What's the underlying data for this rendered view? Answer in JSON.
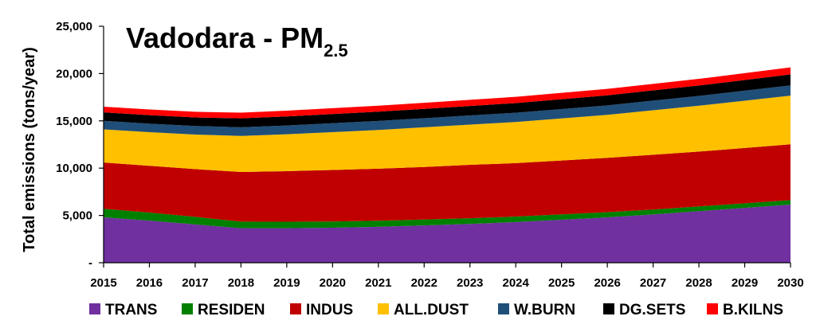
{
  "chart_data": {
    "type": "area",
    "stacked": true,
    "title_main": "Vadodara - PM",
    "title_sub": "2.5",
    "ylabel": "Total emissions (tons/year)",
    "xlabel": "",
    "x": [
      2015,
      2016,
      2017,
      2018,
      2019,
      2020,
      2021,
      2022,
      2023,
      2024,
      2025,
      2026,
      2027,
      2028,
      2029,
      2030
    ],
    "ylim": [
      0,
      25000
    ],
    "y_ticks": [
      {
        "value": 0,
        "label": "-"
      },
      {
        "value": 5000,
        "label": "5,000"
      },
      {
        "value": 10000,
        "label": "10,000"
      },
      {
        "value": 15000,
        "label": "15,000"
      },
      {
        "value": 20000,
        "label": "20,000"
      },
      {
        "value": 25000,
        "label": "25,000"
      }
    ],
    "grid": false,
    "legend_position": "bottom",
    "series": [
      {
        "name": "TRANS",
        "color": "#7030A0",
        "values": [
          4800,
          4450,
          4050,
          3650,
          3650,
          3700,
          3800,
          3950,
          4100,
          4300,
          4550,
          4800,
          5100,
          5450,
          5800,
          6150
        ]
      },
      {
        "name": "RESIDEN",
        "color": "#008000",
        "values": [
          900,
          850,
          800,
          700,
          680,
          660,
          640,
          620,
          600,
          580,
          560,
          540,
          520,
          500,
          480,
          470
        ]
      },
      {
        "name": "INDUS",
        "color": "#C00000",
        "values": [
          4900,
          4950,
          5050,
          5250,
          5350,
          5450,
          5500,
          5550,
          5650,
          5650,
          5700,
          5750,
          5800,
          5800,
          5850,
          5900
        ]
      },
      {
        "name": "ALL.DUST",
        "color": "#FFC000",
        "values": [
          3500,
          3550,
          3650,
          3800,
          3900,
          4000,
          4100,
          4200,
          4250,
          4350,
          4450,
          4550,
          4700,
          4850,
          5000,
          5150
        ]
      },
      {
        "name": "W.BURN",
        "color": "#1F4E79",
        "values": [
          900,
          900,
          910,
          920,
          930,
          940,
          950,
          960,
          970,
          980,
          990,
          1000,
          1020,
          1040,
          1060,
          1080
        ]
      },
      {
        "name": "DG.SETS",
        "color": "#000000",
        "values": [
          900,
          900,
          900,
          950,
          960,
          970,
          980,
          990,
          1000,
          1020,
          1040,
          1060,
          1080,
          1100,
          1130,
          1160
        ]
      },
      {
        "name": "B.KILNS",
        "color": "#FF0000",
        "values": [
          600,
          600,
          600,
          600,
          610,
          620,
          630,
          640,
          650,
          660,
          670,
          680,
          690,
          700,
          720,
          740
        ]
      }
    ]
  }
}
